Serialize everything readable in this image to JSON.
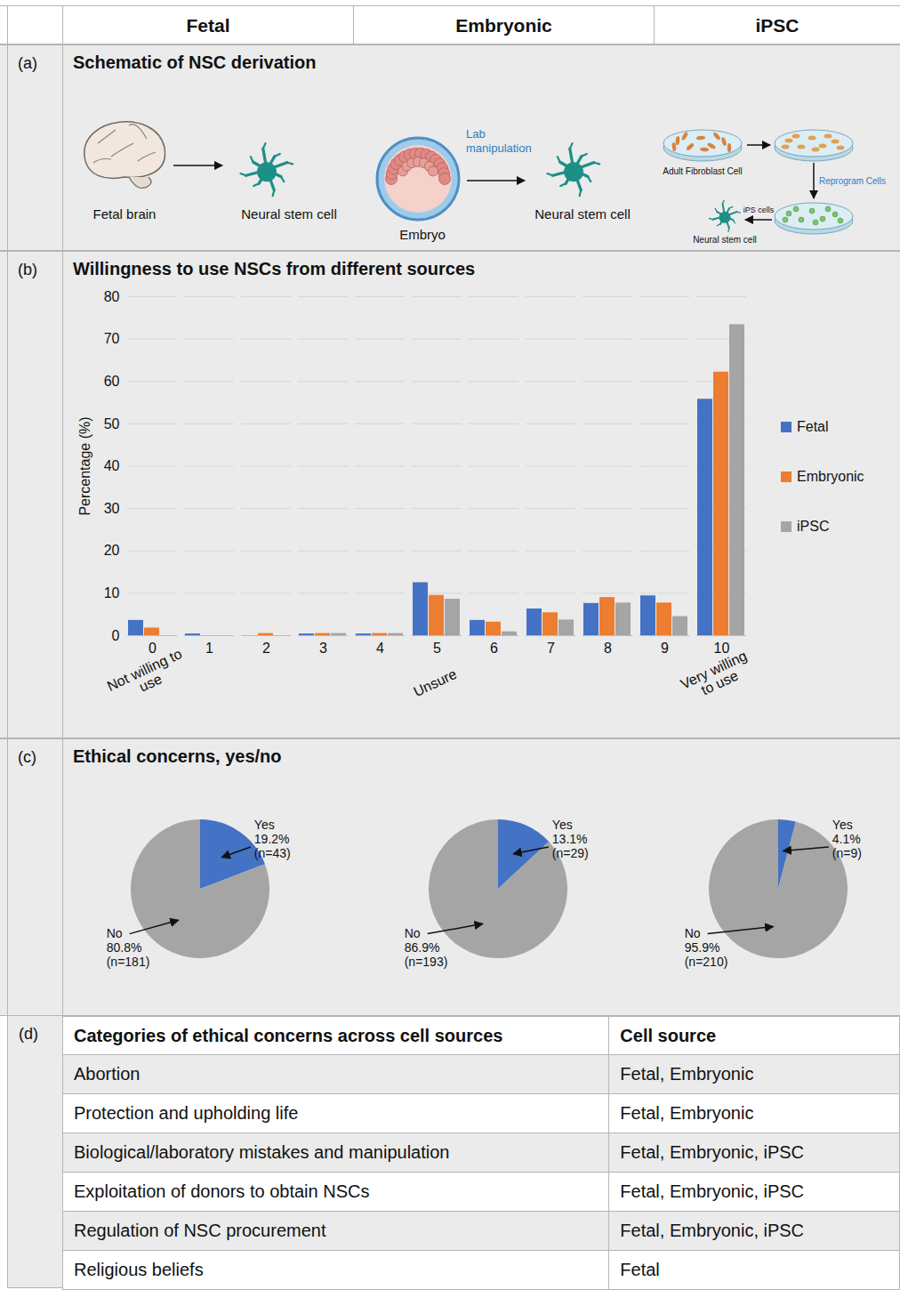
{
  "columns": [
    "Fetal",
    "Embryonic",
    "iPSC"
  ],
  "schematic": {
    "panel": "(a)",
    "title": "Schematic of NSC derivation",
    "fetal": {
      "source": "Fetal brain",
      "result": "Neural stem cell"
    },
    "embryonic": {
      "source": "Embryo",
      "step": "Lab manipulation",
      "result": "Neural stem cell"
    },
    "ipsc": {
      "source": "Adult Fibroblast Cell",
      "step": "Reprogram Cells",
      "intermediate": "iPS cells",
      "result": "Neural stem cell"
    }
  },
  "chart_data": [
    {
      "type": "bar",
      "panel": "(b)",
      "title": "Willingness to use NSCs from different sources",
      "categories": [
        "0",
        "1",
        "2",
        "3",
        "4",
        "5",
        "6",
        "7",
        "8",
        "9",
        "10"
      ],
      "series": [
        {
          "name": "Fetal",
          "color": "#4472c4",
          "values": [
            3.6,
            0.4,
            0,
            0.4,
            0.4,
            12.5,
            3.6,
            6.3,
            7.6,
            9.4,
            55.8
          ]
        },
        {
          "name": "Embryonic",
          "color": "#ed7d31",
          "values": [
            1.8,
            0,
            0.5,
            0.5,
            0.5,
            9.5,
            3.2,
            5.4,
            9.0,
            7.7,
            62.2
          ]
        },
        {
          "name": "iPSC",
          "color": "#a5a5a5",
          "values": [
            0,
            0,
            0,
            0.5,
            0.5,
            8.6,
            0.9,
            3.7,
            7.7,
            4.5,
            73.4
          ]
        }
      ],
      "ylabel": "Percentage (%)",
      "annotations": [
        {
          "x": "0",
          "text": "Not willing to use"
        },
        {
          "x": "5",
          "text": "Unsure"
        },
        {
          "x": "10",
          "text": "Very willing to use"
        }
      ],
      "ylim": [
        0,
        80
      ],
      "yticks": [
        0,
        10,
        20,
        30,
        40,
        50,
        60,
        70,
        80
      ],
      "grid": true,
      "legend": "right"
    },
    {
      "type": "pie",
      "panel": "(c)",
      "title": "Ethical concerns, yes/no",
      "categories": [
        "Yes",
        "No"
      ],
      "values": [
        19.2,
        80.8
      ],
      "value_labels": [
        "19.2%",
        "80.8%"
      ],
      "count_labels": [
        "(n=43)",
        "(n=181)"
      ],
      "colors": [
        "#4472c4",
        "#a5a5a5"
      ]
    },
    {
      "type": "pie",
      "categories": [
        "Yes",
        "No"
      ],
      "values": [
        13.1,
        86.9
      ],
      "value_labels": [
        "13.1%",
        "86.9%"
      ],
      "count_labels": [
        "(n=29)",
        "(n=193)"
      ],
      "colors": [
        "#4472c4",
        "#a5a5a5"
      ]
    },
    {
      "type": "pie",
      "categories": [
        "Yes",
        "No"
      ],
      "values": [
        4.1,
        95.9
      ],
      "value_labels": [
        "4.1%",
        "95.9%"
      ],
      "count_labels": [
        "(n=9)",
        "(n=210)"
      ],
      "colors": [
        "#4472c4",
        "#a5a5a5"
      ]
    }
  ],
  "table": {
    "panel": "(d)",
    "header": [
      "Categories of ethical concerns across cell sources",
      "Cell source"
    ],
    "rows": [
      [
        "Abortion",
        "Fetal, Embryonic"
      ],
      [
        "Protection and upholding life",
        "Fetal, Embryonic"
      ],
      [
        "Biological/laboratory mistakes and manipulation",
        "Fetal, Embryonic, iPSC"
      ],
      [
        "Exploitation of donors to obtain NSCs",
        "Fetal, Embryonic, iPSC"
      ],
      [
        "Regulation of NSC procurement",
        "Fetal, Embryonic, iPSC"
      ],
      [
        "Religious beliefs",
        "Fetal"
      ]
    ]
  }
}
